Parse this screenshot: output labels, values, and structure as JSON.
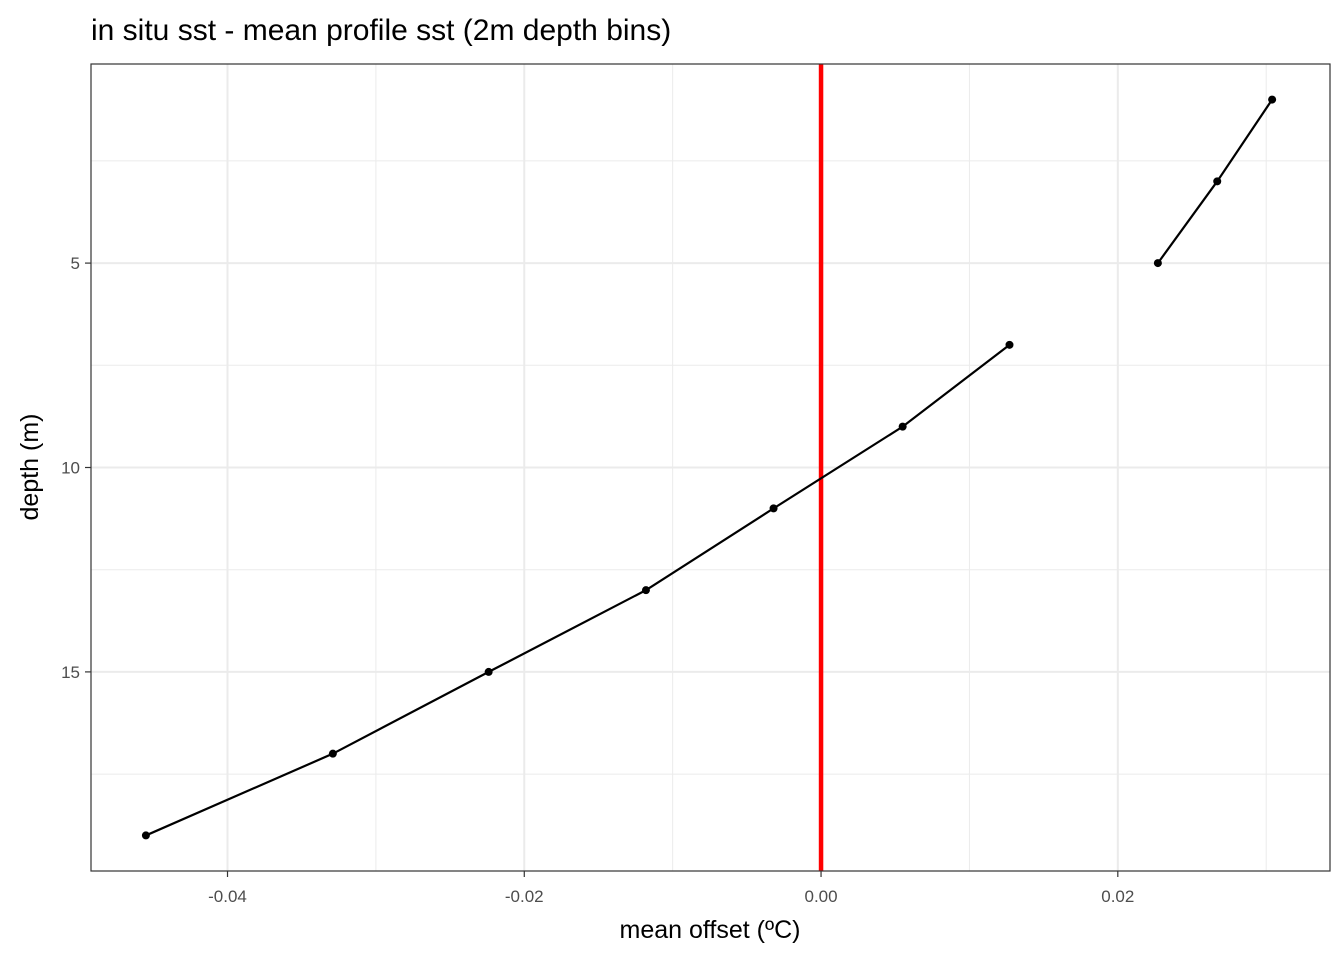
{
  "chart_data": {
    "type": "line",
    "title": "in situ sst - mean profile sst (2m depth bins)",
    "x_label": "mean offset (ºC)",
    "y_label": "depth (m)",
    "y": [
      1,
      3,
      5,
      6,
      7,
      9,
      11,
      13,
      15,
      17,
      19
    ],
    "series": [
      {
        "color": "#000000",
        "values": [
          0.0304,
          0.0267,
          0.0227,
          null,
          0.0127,
          0.0055,
          -0.0032,
          -0.0118,
          -0.0224,
          -0.0329,
          -0.0455
        ]
      }
    ],
    "xlim": [
      -0.0492,
      0.0343
    ],
    "ylim": [
      19.87,
      0.13
    ],
    "y_reversed": true,
    "xticks": [
      -0.04,
      -0.02,
      {
        "value": 0,
        "label": "0.00"
      },
      0.02
    ],
    "yticks": [
      5,
      10,
      15
    ],
    "x_minor_grid": [
      -0.03,
      -0.01,
      0.01,
      0.03
    ],
    "y_minor_grid": [
      2.5,
      7.5,
      12.5,
      17.5
    ],
    "grid": true,
    "reference_line": {
      "x": 0,
      "color": "#ff0000"
    }
  }
}
